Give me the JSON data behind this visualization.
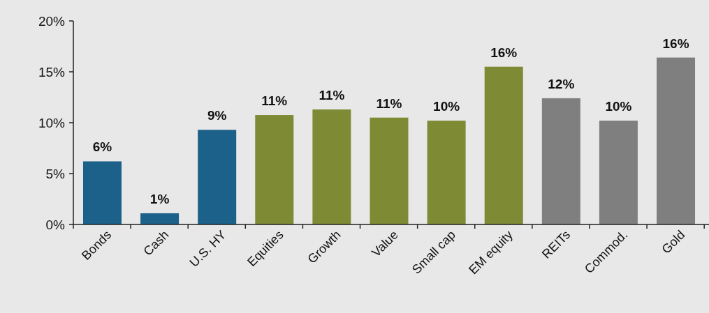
{
  "chart_data": {
    "type": "bar",
    "categories": [
      "Bonds",
      "Cash",
      "U.S. HY",
      "Equities",
      "Growth",
      "Value",
      "Small cap",
      "EM equity",
      "REITs",
      "Commod.",
      "Gold"
    ],
    "values": [
      6.2,
      1.1,
      9.3,
      10.75,
      11.3,
      10.5,
      10.2,
      15.5,
      12.4,
      10.2,
      16.4
    ],
    "colors": [
      "#1b6189",
      "#1b6189",
      "#1b6189",
      "#7f8a35",
      "#7f8a35",
      "#7f8a35",
      "#7f8a35",
      "#7f8a35",
      "#7f7f7f",
      "#7f7f7f",
      "#7f7f7f"
    ],
    "value_labels": [
      "6%",
      "1%",
      "9%",
      "11%",
      "11%",
      "11%",
      "10%",
      "16%",
      "12%",
      "10%",
      "16%"
    ],
    "ylim": [
      0,
      20
    ],
    "yticks": [
      {
        "value": 0,
        "label": "0%"
      },
      {
        "value": 5,
        "label": "5%"
      },
      {
        "value": 10,
        "label": "10%"
      },
      {
        "value": 15,
        "label": "15%"
      },
      {
        "value": 20,
        "label": "20%"
      }
    ],
    "grid": false
  }
}
